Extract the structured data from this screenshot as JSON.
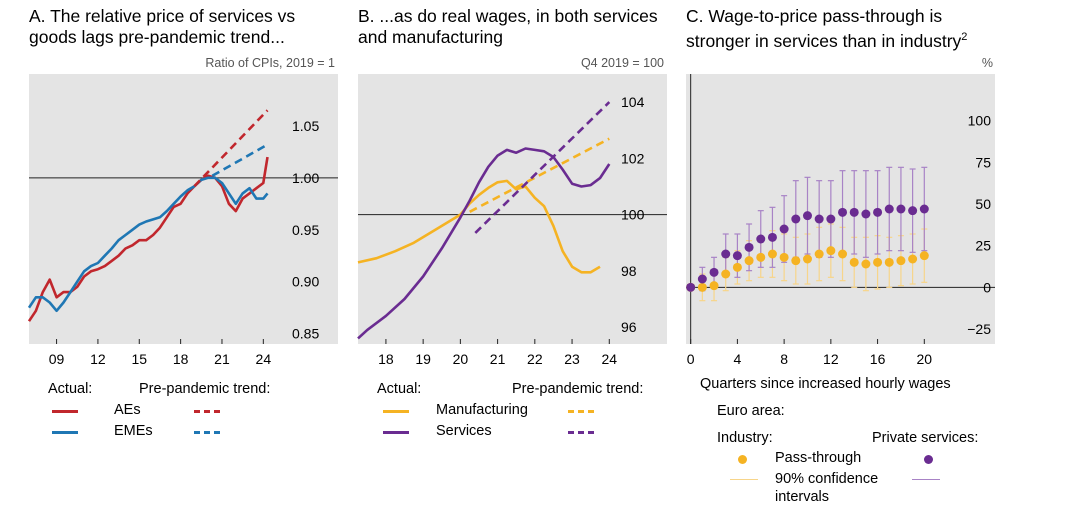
{
  "colors": {
    "aes": "#c1272d",
    "emes": "#1f77b4",
    "manufacturing": "#f5b323",
    "services": "#6a2c91",
    "industry_ci": "#f7d58a",
    "services_ci": "#a883c6",
    "plot_bg": "#e4e4e4"
  },
  "panelA": {
    "title": "A. The relative price of services vs\ngoods lags pre-pandemic trend...",
    "units": "Ratio of CPIs, 2019 = 1",
    "legend": {
      "actual": "Actual:",
      "trend": "Pre-pandemic trend:",
      "items": [
        "AEs",
        "EMEs"
      ]
    }
  },
  "panelB": {
    "title": "B. ...as do real wages, in both services\nand manufacturing",
    "units": "Q4 2019 = 100",
    "legend": {
      "actual": "Actual:",
      "trend": "Pre-pandemic trend:",
      "items": [
        "Manufacturing",
        "Services"
      ]
    }
  },
  "panelC": {
    "title": "C. Wage-to-price pass-through is\nstronger in services than in industry",
    "superscript": "2",
    "units": "%",
    "xlabel": "Quarters since increased hourly wages",
    "legend": {
      "region": "Euro area:",
      "industry": "Industry:",
      "services": "Private services:",
      "passthrough": "Pass-through",
      "ci_line1": "90% confidence",
      "ci_line2": "intervals"
    }
  },
  "chart_data": [
    {
      "type": "line",
      "title": "A. The relative price of services vs goods lags pre-pandemic trend...",
      "ylabel": "Ratio of CPIs, 2019 = 1",
      "xlim": [
        2007,
        2025.5
      ],
      "ylim": [
        0.84,
        1.1
      ],
      "reference_line": 1.0,
      "x_ticks": [
        2009,
        2012,
        2015,
        2018,
        2021,
        2024
      ],
      "x_tick_labels": [
        "09",
        "12",
        "15",
        "18",
        "21",
        "24"
      ],
      "y_ticks": [
        0.85,
        0.9,
        0.95,
        1.0,
        1.05
      ],
      "y_tick_labels": [
        "0.85",
        "0.90",
        "0.95",
        "1.00",
        "1.05"
      ],
      "series": [
        {
          "name": "AEs",
          "style": "solid",
          "x": [
            2007,
            2007.5,
            2008,
            2008.5,
            2009,
            2009.5,
            2010,
            2010.5,
            2011,
            2011.5,
            2012,
            2012.5,
            2013,
            2013.5,
            2014,
            2014.5,
            2015,
            2015.5,
            2016,
            2016.5,
            2017,
            2017.5,
            2018,
            2018.5,
            2019,
            2019.5,
            2020,
            2020.5,
            2021,
            2021.5,
            2022,
            2022.5,
            2023,
            2023.5,
            2024,
            2024.3
          ],
          "y": [
            0.862,
            0.872,
            0.89,
            0.902,
            0.885,
            0.89,
            0.89,
            0.895,
            0.905,
            0.91,
            0.912,
            0.915,
            0.92,
            0.925,
            0.932,
            0.935,
            0.94,
            0.94,
            0.945,
            0.952,
            0.962,
            0.972,
            0.975,
            0.985,
            0.992,
            0.998,
            1.002,
            1.0,
            0.992,
            0.975,
            0.968,
            0.98,
            0.985,
            0.99,
            0.995,
            1.02
          ]
        },
        {
          "name": "EMEs",
          "style": "solid",
          "x": [
            2007,
            2007.5,
            2008,
            2008.5,
            2009,
            2009.5,
            2010,
            2010.5,
            2011,
            2011.5,
            2012,
            2012.5,
            2013,
            2013.5,
            2014,
            2014.5,
            2015,
            2015.5,
            2016,
            2016.5,
            2017,
            2017.5,
            2018,
            2018.5,
            2019,
            2019.5,
            2020,
            2020.5,
            2021,
            2021.5,
            2022,
            2022.5,
            2023,
            2023.5,
            2024,
            2024.3
          ],
          "y": [
            0.875,
            0.885,
            0.885,
            0.88,
            0.872,
            0.88,
            0.89,
            0.9,
            0.91,
            0.915,
            0.918,
            0.925,
            0.932,
            0.94,
            0.945,
            0.95,
            0.955,
            0.958,
            0.96,
            0.962,
            0.968,
            0.975,
            0.982,
            0.988,
            0.992,
            0.998,
            1.0,
            1.0,
            0.995,
            0.985,
            0.975,
            0.985,
            0.99,
            0.98,
            0.98,
            0.985
          ]
        },
        {
          "name": "AEs pre-pandemic trend",
          "style": "dashed",
          "x": [
            2019,
            2024.3
          ],
          "y": [
            0.992,
            1.065
          ]
        },
        {
          "name": "EMEs pre-pandemic trend",
          "style": "dashed",
          "x": [
            2020.3,
            2024.3
          ],
          "y": [
            1.002,
            1.032
          ]
        }
      ]
    },
    {
      "type": "line",
      "title": "B. ...as do real wages, in both services and manufacturing",
      "ylabel": "Q4 2019 = 100",
      "xlim": [
        2017.25,
        2024.1
      ],
      "ylim": [
        95.4,
        105
      ],
      "reference_line": 100,
      "x_ticks": [
        2018,
        2019,
        2020,
        2021,
        2022,
        2023,
        2024
      ],
      "x_tick_labels": [
        "18",
        "19",
        "20",
        "21",
        "22",
        "23",
        "24"
      ],
      "y_ticks": [
        96,
        98,
        100,
        102,
        104
      ],
      "y_tick_labels": [
        "96",
        "98",
        "100",
        "102",
        "104"
      ],
      "series": [
        {
          "name": "Manufacturing",
          "style": "solid",
          "x": [
            2017.25,
            2017.75,
            2018.25,
            2018.75,
            2019.25,
            2019.75,
            2020.0,
            2020.25,
            2020.5,
            2020.75,
            2021.0,
            2021.25,
            2021.5,
            2021.75,
            2022.0,
            2022.25,
            2022.5,
            2022.75,
            2023.0,
            2023.25,
            2023.5,
            2023.75
          ],
          "y": [
            98.3,
            98.45,
            98.7,
            99.0,
            99.4,
            99.8,
            100.0,
            100.4,
            100.7,
            100.95,
            101.15,
            101.2,
            100.9,
            101.0,
            100.6,
            100.3,
            99.6,
            98.7,
            98.15,
            97.95,
            97.95,
            98.15
          ]
        },
        {
          "name": "Services",
          "style": "solid",
          "x": [
            2017.25,
            2017.5,
            2018.0,
            2018.5,
            2019.0,
            2019.5,
            2020.0,
            2020.25,
            2020.5,
            2020.75,
            2021.0,
            2021.25,
            2021.5,
            2021.75,
            2022.0,
            2022.25,
            2022.5,
            2022.75,
            2023.0,
            2023.25,
            2023.5,
            2023.75,
            2024.0
          ],
          "y": [
            95.6,
            95.9,
            96.4,
            97.0,
            97.8,
            98.8,
            99.9,
            100.5,
            101.15,
            101.7,
            102.1,
            102.3,
            102.2,
            102.35,
            102.3,
            102.25,
            102.05,
            101.6,
            101.1,
            101.0,
            101.05,
            101.3,
            101.8
          ]
        },
        {
          "name": "Manufacturing pre-pandemic trend",
          "style": "dashed",
          "x": [
            2020.25,
            2024.0
          ],
          "y": [
            100.1,
            102.7
          ]
        },
        {
          "name": "Services pre-pandemic trend",
          "style": "dashed",
          "x": [
            2020.4,
            2024.0
          ],
          "y": [
            99.35,
            104.0
          ]
        }
      ]
    },
    {
      "type": "scatter",
      "title": "C. Wage-to-price pass-through is stronger in services than in industry",
      "xlabel": "Quarters since increased hourly wages",
      "ylabel": "%",
      "xlim": [
        -0.4,
        22.2
      ],
      "ylim": [
        -34,
        128
      ],
      "reference_line": 0,
      "x_ticks": [
        0,
        4,
        8,
        12,
        16,
        20
      ],
      "y_ticks": [
        -25,
        0,
        25,
        50,
        75,
        100
      ],
      "y_tick_labels": [
        "−25",
        "0",
        "25",
        "50",
        "75",
        "100"
      ],
      "x": [
        0,
        1,
        2,
        3,
        4,
        5,
        6,
        7,
        8,
        9,
        10,
        11,
        12,
        13,
        14,
        15,
        16,
        17,
        18,
        19,
        20
      ],
      "series": [
        {
          "name": "Industry pass-through",
          "values": [
            0,
            0,
            1,
            8,
            12,
            16,
            18,
            20,
            18,
            16,
            17,
            20,
            22,
            20,
            15,
            14,
            15,
            15,
            16,
            17,
            19
          ],
          "ci_low": [
            0,
            -8,
            -8,
            -2,
            2,
            4,
            6,
            6,
            4,
            2,
            2,
            4,
            6,
            4,
            0,
            -2,
            -1,
            0,
            1,
            2,
            3
          ],
          "ci_high": [
            0,
            8,
            10,
            18,
            22,
            28,
            30,
            34,
            32,
            30,
            32,
            36,
            38,
            36,
            30,
            30,
            31,
            30,
            31,
            32,
            35
          ]
        },
        {
          "name": "Private services pass-through",
          "values": [
            0,
            5,
            9,
            20,
            19,
            24,
            29,
            30,
            35,
            41,
            43,
            41,
            41,
            45,
            45,
            44,
            45,
            47,
            47,
            46,
            47
          ],
          "ci_low": [
            0,
            -2,
            0,
            8,
            6,
            10,
            12,
            12,
            15,
            18,
            20,
            18,
            18,
            20,
            20,
            18,
            20,
            22,
            22,
            21,
            22
          ],
          "ci_high": [
            0,
            12,
            18,
            32,
            32,
            38,
            46,
            48,
            55,
            64,
            66,
            64,
            64,
            70,
            70,
            70,
            70,
            72,
            72,
            71,
            72
          ]
        }
      ]
    }
  ]
}
